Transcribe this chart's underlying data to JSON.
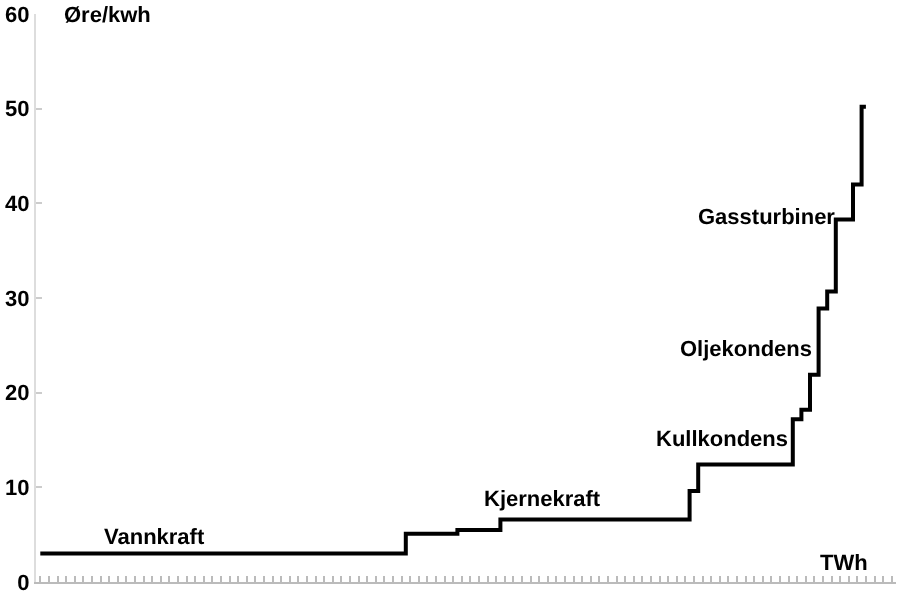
{
  "chart_data": {
    "type": "step",
    "ylabel": "Øre/kwh",
    "xlabel": "TWh",
    "annotations": [
      "Vannkraft",
      "Kjernekraft",
      "Kullkondens",
      "Oljekondens",
      "Gassturbiner"
    ],
    "categories": [
      null,
      null,
      null,
      null,
      null,
      null,
      null,
      null,
      null,
      null,
      null,
      null,
      null,
      null,
      null,
      null,
      null,
      null,
      null,
      null,
      null,
      null,
      null,
      null,
      null,
      null,
      null,
      null,
      null,
      null,
      null,
      null,
      null,
      null,
      null,
      null,
      null,
      null,
      null,
      null,
      null,
      null,
      null,
      null,
      null,
      null,
      null,
      null,
      null,
      null,
      null,
      null,
      null,
      null,
      null,
      null,
      null,
      null,
      null,
      null,
      null,
      null,
      null,
      null,
      null,
      null,
      null,
      null,
      null,
      null,
      null,
      null,
      null,
      null,
      null,
      null,
      null,
      null,
      null,
      null,
      null,
      null,
      null,
      null,
      null,
      null,
      null,
      null,
      null,
      null,
      null,
      null,
      null,
      null,
      null,
      null,
      null
    ],
    "series": [
      {
        "color": "#000000",
        "values": [
          3,
          3,
          3,
          3,
          3,
          3,
          3,
          3,
          3,
          3,
          3,
          3,
          3,
          3,
          3,
          3,
          3,
          3,
          3,
          3,
          3,
          3,
          3,
          3,
          3,
          3,
          3,
          3,
          3,
          3,
          3,
          3,
          3,
          3,
          3,
          3,
          3,
          3,
          3,
          3,
          3,
          3,
          3,
          5.1,
          5.1,
          5.1,
          5.1,
          5.1,
          5.1,
          5.5,
          5.5,
          5.5,
          5.5,
          5.5,
          6.6,
          6.6,
          6.6,
          6.6,
          6.6,
          6.6,
          6.6,
          6.6,
          6.6,
          6.6,
          6.6,
          6.6,
          6.6,
          6.6,
          6.6,
          6.6,
          6.6,
          6.6,
          6.6,
          6.6,
          6.6,
          6.6,
          9.6,
          12.4,
          12.4,
          12.4,
          12.4,
          12.4,
          12.4,
          12.4,
          12.4,
          12.4,
          12.4,
          12.4,
          17.2,
          18.2,
          21.9,
          28.9,
          30.7,
          38.3,
          38.3,
          42,
          50.2
        ]
      }
    ],
    "ylim": [
      0,
      60
    ],
    "yticks": [
      0,
      10,
      20,
      30,
      40,
      50,
      60
    ],
    "tick_labels": "y"
  }
}
